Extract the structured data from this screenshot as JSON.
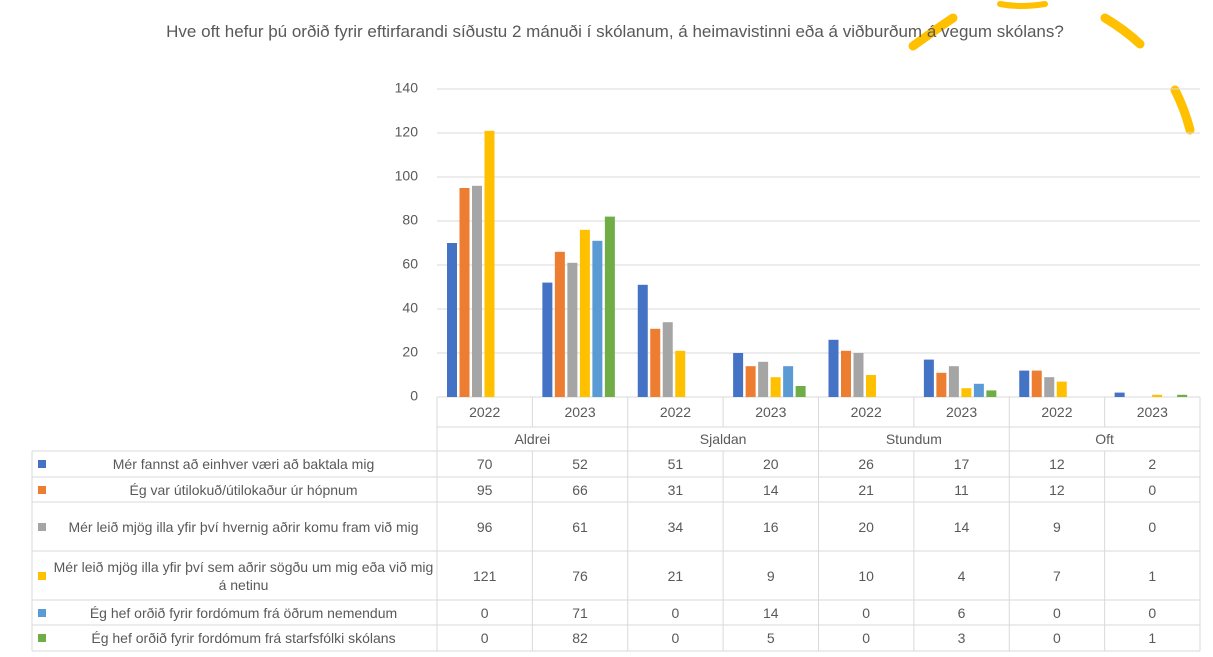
{
  "chart_data": {
    "type": "bar",
    "title": "Hve oft hefur þú orðið fyrir eftirfarandi síðustu 2 mánuði í skólanum, á heimavistinni eða á viðburðum á vegum skólans?",
    "categories": [
      "2022",
      "2023",
      "2022",
      "2023",
      "2022",
      "2023",
      "2022",
      "2023"
    ],
    "groups": [
      "Aldrei",
      "Sjaldan",
      "Stundum",
      "Oft"
    ],
    "series": [
      {
        "name": "Mér fannst að einhver væri að baktala mig",
        "color": "#4472c4",
        "values": [
          70,
          52,
          51,
          20,
          26,
          17,
          12,
          2
        ]
      },
      {
        "name": "Ég var útilokuð/útilokaður úr hópnum",
        "color": "#ed7d31",
        "values": [
          95,
          66,
          31,
          14,
          21,
          11,
          12,
          0
        ]
      },
      {
        "name": "Mér leið mjög illa yfir því hvernig aðrir komu fram við mig",
        "color": "#a5a5a5",
        "values": [
          96,
          61,
          34,
          16,
          20,
          14,
          9,
          0
        ]
      },
      {
        "name": "Mér leið mjög illa yfir því sem aðrir sögðu um mig eða við mig á netinu",
        "color": "#ffc000",
        "values": [
          121,
          76,
          21,
          9,
          10,
          4,
          7,
          1
        ]
      },
      {
        "name": "Ég hef orðið fyrir fordómum frá öðrum nemendum",
        "color": "#5b9bd5",
        "values": [
          0,
          71,
          0,
          14,
          0,
          6,
          0,
          0
        ]
      },
      {
        "name": "Ég hef orðið fyrir fordómum frá starfsfólki skólans",
        "color": "#70ad47",
        "values": [
          0,
          82,
          0,
          5,
          0,
          3,
          0,
          1
        ]
      }
    ],
    "ylim": [
      0,
      140
    ],
    "yticks": [
      0,
      20,
      40,
      60,
      80,
      100,
      120,
      140
    ],
    "grid": true
  }
}
